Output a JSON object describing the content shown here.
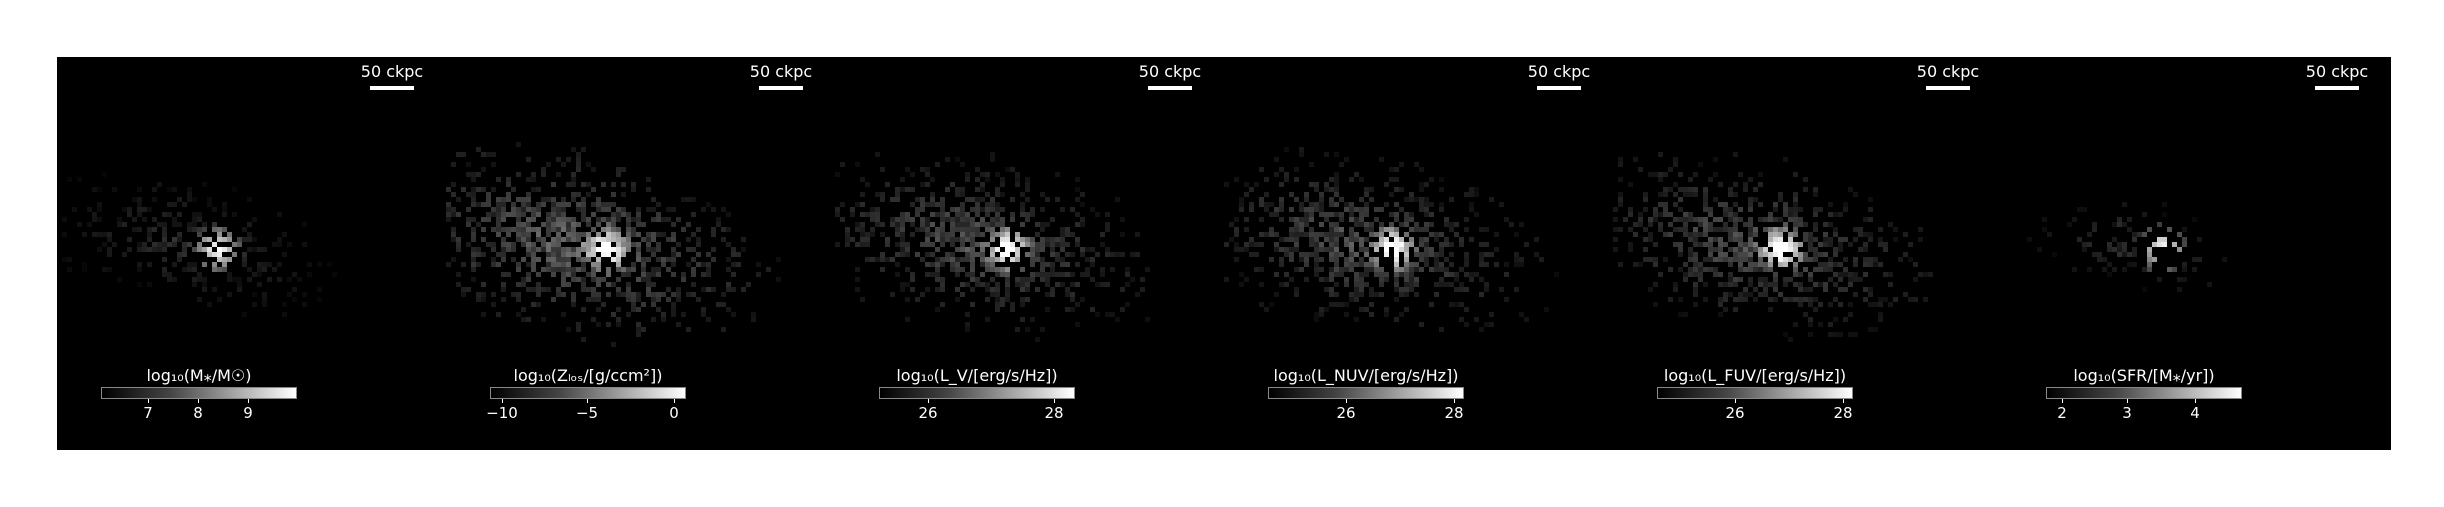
{
  "panels": [
    {
      "id": "mass",
      "scale_label": "50 ckpc",
      "colorbar": {
        "label": "log₁₀(M⁎/M☉)",
        "ticks": [
          "7",
          "8",
          "9"
        ],
        "tick_pos": [
          0.24,
          0.5,
          0.76
        ]
      }
    },
    {
      "id": "metal",
      "scale_label": "50 ckpc",
      "colorbar": {
        "label": "log₁₀(Zₗₒₛ/[g/ccm²])",
        "ticks": [
          "−10",
          "−5",
          "0"
        ],
        "tick_pos": [
          0.06,
          0.5,
          0.95
        ]
      }
    },
    {
      "id": "lv",
      "scale_label": "50 ckpc",
      "colorbar": {
        "label": "log₁₀(L_V/[erg/s/Hz])",
        "ticks": [
          "26",
          "28"
        ],
        "tick_pos": [
          0.25,
          0.9
        ]
      }
    },
    {
      "id": "lnuv",
      "scale_label": "50 ckpc",
      "colorbar": {
        "label": "log₁₀(L_NUV/[erg/s/Hz])",
        "ticks": [
          "26",
          "28"
        ],
        "tick_pos": [
          0.4,
          0.96
        ]
      }
    },
    {
      "id": "lfuv",
      "scale_label": "50 ckpc",
      "colorbar": {
        "label": "log₁₀(L_FUV/[erg/s/Hz])",
        "ticks": [
          "26",
          "28"
        ],
        "tick_pos": [
          0.4,
          0.96
        ]
      }
    },
    {
      "id": "sfr",
      "scale_label": "50 ckpc",
      "colorbar": {
        "label": "log₁₀(SFR/[M⁎/yr])",
        "ticks": [
          "2",
          "3",
          "4"
        ],
        "tick_pos": [
          0.08,
          0.42,
          0.77
        ]
      }
    }
  ]
}
